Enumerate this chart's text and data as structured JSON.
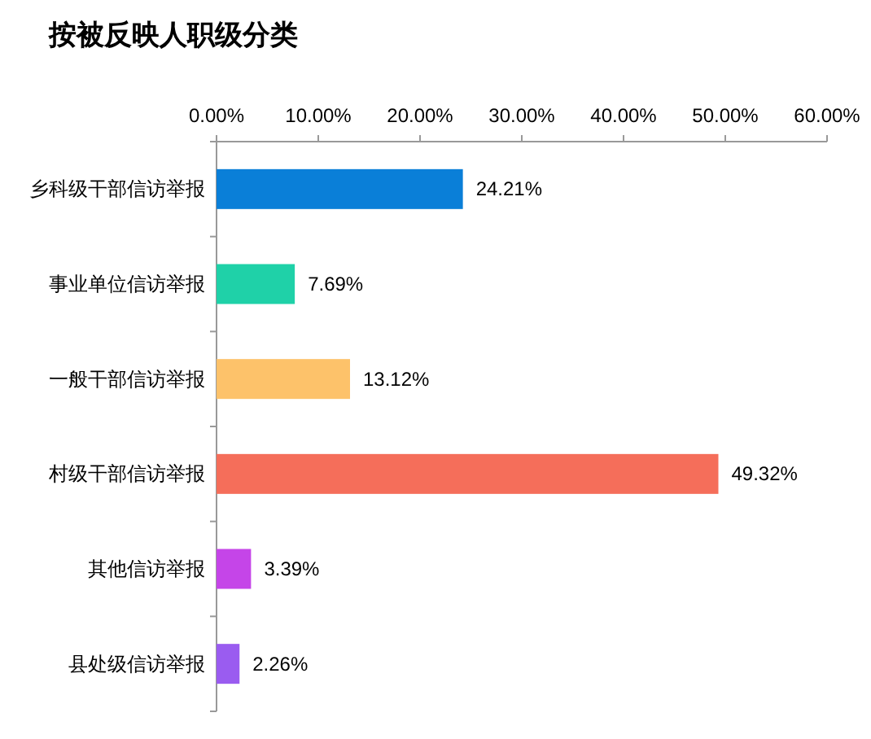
{
  "chart_data": {
    "type": "bar",
    "orientation": "horizontal",
    "title": "按被反映人职级分类",
    "categories": [
      "乡科级干部信访举报",
      "事业单位信访举报",
      "一般干部信访举报",
      "村级干部信访举报",
      "其他信访举报",
      "县处级信访举报"
    ],
    "values": [
      24.21,
      7.69,
      13.12,
      49.32,
      3.39,
      2.26
    ],
    "colors": [
      "#0a7fd8",
      "#1fd1a8",
      "#fdc26a",
      "#f56e5a",
      "#c545e8",
      "#9a5cf0"
    ],
    "value_labels": [
      "24.21%",
      "7.69%",
      "13.12%",
      "49.32%",
      "3.39%",
      "2.26%"
    ],
    "xlim": [
      0,
      60
    ],
    "xticks": [
      {
        "value": 0,
        "label": "0.00%"
      },
      {
        "value": 10,
        "label": "10.00%"
      },
      {
        "value": 20,
        "label": "20.00%"
      },
      {
        "value": 30,
        "label": "30.00%"
      },
      {
        "value": 40,
        "label": "40.00%"
      },
      {
        "value": 50,
        "label": "50.00%"
      },
      {
        "value": 60,
        "label": "60.00%"
      }
    ],
    "grid": false
  }
}
